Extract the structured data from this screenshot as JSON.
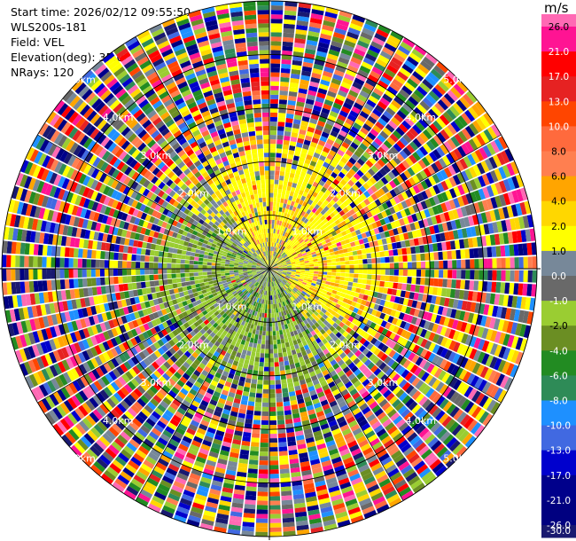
{
  "info": {
    "start_time": "Start time: 2026/02/12 09:55:50",
    "station": "WLS200s-181",
    "field": "Field: VEL",
    "elevation": "Elevation(deg): 35.00",
    "nrays": "NRays: 120"
  },
  "chart_data": {
    "type": "heatmap",
    "projection": "polar-ppi",
    "field": "VEL",
    "units": "m/s",
    "num_rays": 120,
    "range_rings": [
      {
        "label": "1.0km",
        "range_km": 1.0
      },
      {
        "label": "2.0km",
        "range_km": 2.0
      },
      {
        "label": "3.0km",
        "range_km": 3.0
      },
      {
        "label": "4.0km",
        "range_km": 4.0
      },
      {
        "label": "5.0km",
        "range_km": 5.0
      }
    ],
    "max_range_km": 5.0,
    "colorbar": {
      "title": "m/s",
      "labels": [
        "26.0",
        "21.0",
        "17.0",
        "13.0",
        "10.0",
        "8.0",
        "6.0",
        "4.0",
        "2.0",
        "1.0",
        "0.0",
        "-1.0",
        "-2.0",
        "-4.0",
        "-6.0",
        "-8.0",
        "-10.0",
        "-13.0",
        "-17.0",
        "-21.0",
        "-26.0",
        "-30.0"
      ],
      "colors": [
        "#ff69b4",
        "#ff1493",
        "#ff0000",
        "#e62222",
        "#ff4500",
        "#ff6a3d",
        "#ff7f50",
        "#ffa500",
        "#ffd700",
        "#ffff00",
        "#778899",
        "#696969",
        "#9acd32",
        "#6b8e23",
        "#228b22",
        "#2e8b57",
        "#1e90ff",
        "#4169e1",
        "#0000cd",
        "#00008b",
        "#000080",
        "#191970"
      ]
    },
    "spatial_pattern": {
      "center": "mixed green, gray, yellow values near origin",
      "northwest": "predominantly negative (-1 to -6 m/s, green/olive)",
      "southeast": "predominantly positive (1 to 4 m/s, yellow/orange)",
      "outer": "noisy multicolor values beyond about 2.5 km"
    }
  }
}
